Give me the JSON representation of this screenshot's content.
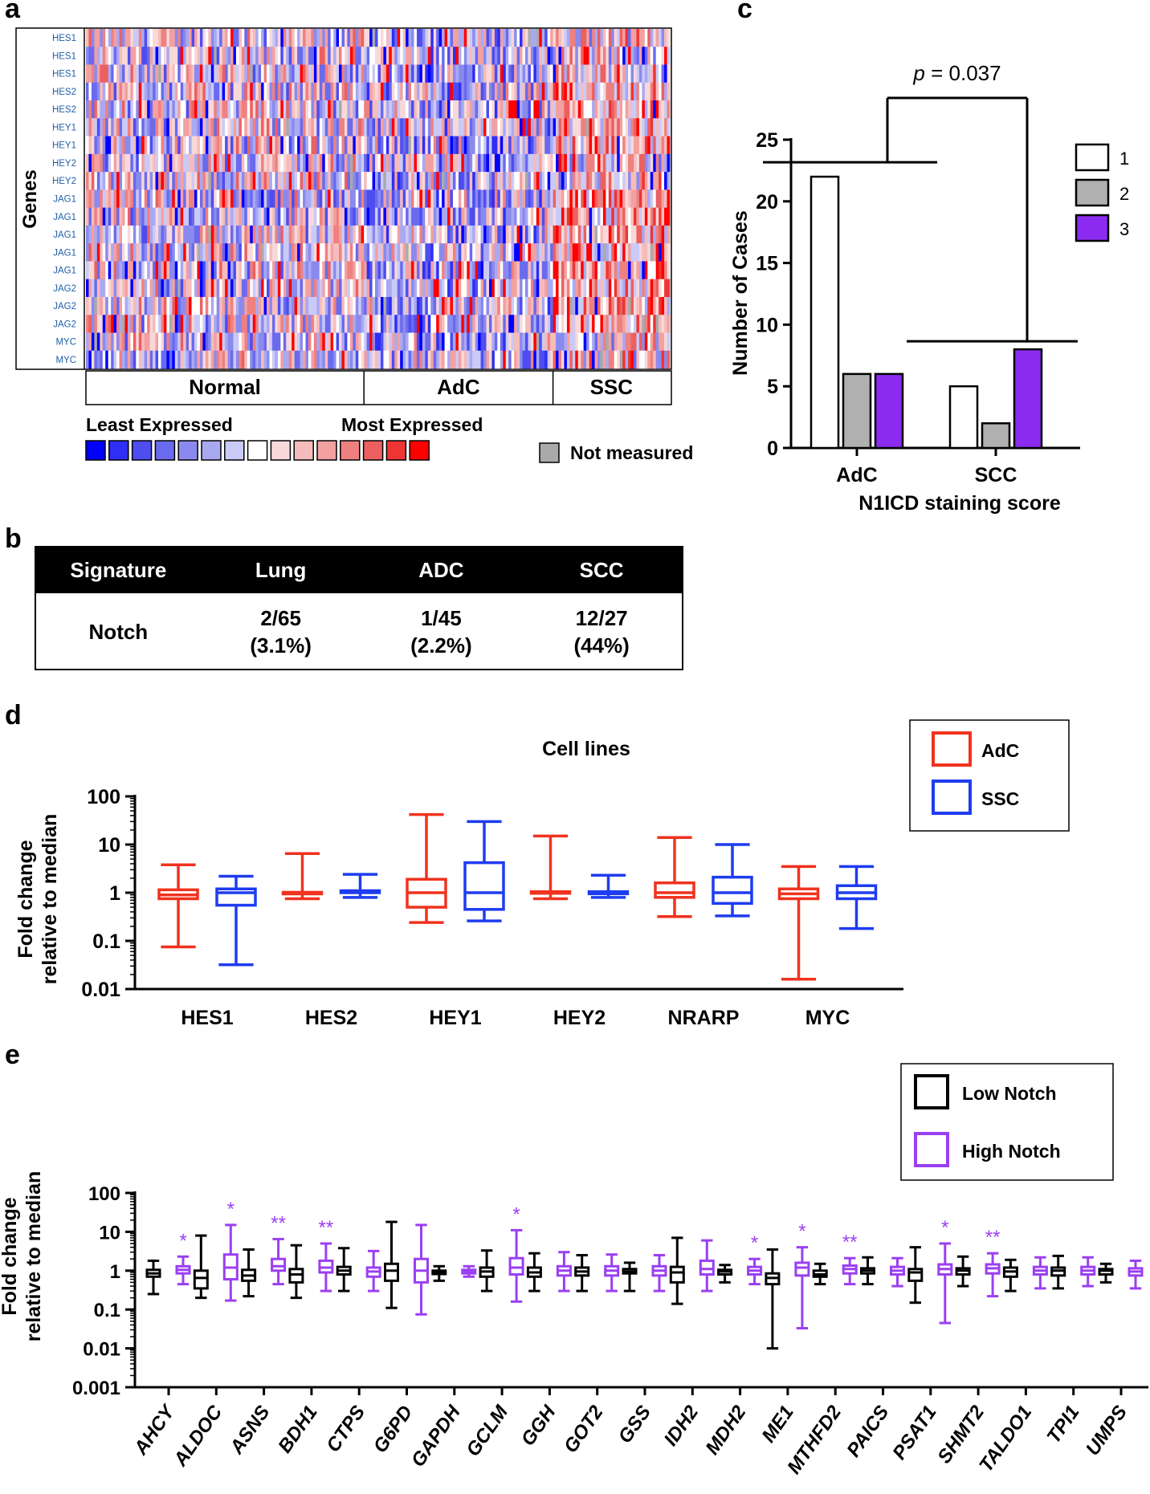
{
  "panel_labels": {
    "a": "a",
    "b": "b",
    "c": "c",
    "d": "d",
    "e": "e"
  },
  "colors": {
    "adc": "#f0321e",
    "ssc": "#1e3cf0",
    "low": "#000000",
    "high": "#9b3ff2",
    "bar1": "#ffffff",
    "bar2": "#b0b0b0",
    "bar3": "#8c2bf0",
    "na": "#aaaaaa"
  },
  "heatmap": {
    "y_title": "Genes",
    "genes": [
      "HES1",
      "HES1",
      "HES1",
      "HES2",
      "HES2",
      "HEY1",
      "HEY1",
      "HEY2",
      "HEY2",
      "JAG1",
      "JAG1",
      "JAG1",
      "JAG1",
      "JAG1",
      "JAG2",
      "JAG2",
      "JAG2",
      "MYC",
      "MYC"
    ],
    "groups": [
      {
        "label": "Normal",
        "count": 100
      },
      {
        "label": "AdC",
        "count": 68
      },
      {
        "label": "SSC",
        "count": 42
      }
    ],
    "legend_low": "Least Expressed",
    "legend_high": "Most Expressed",
    "legend_na": "Not measured",
    "scale": [
      "#0000ff",
      "#2e2ef5",
      "#4d4df0",
      "#6a6aee",
      "#8a8aee",
      "#a9a9f2",
      "#cacaf6",
      "#ffffff",
      "#f8d8d8",
      "#f6bcbc",
      "#f2a0a0",
      "#ef8080",
      "#ec6060",
      "#ef3434",
      "#ff0000"
    ]
  },
  "table": {
    "headers": [
      "Signature",
      "Lung",
      "ADC",
      "SCC"
    ],
    "row": {
      "label": "Notch",
      "lung": [
        "2/65",
        "(3.1%)"
      ],
      "adc": [
        "1/45",
        "(2.2%)"
      ],
      "scc": [
        "12/27",
        "(44%)"
      ]
    }
  },
  "chart_data": [
    {
      "panel": "c",
      "type": "bar",
      "categories": [
        "AdC",
        "SCC"
      ],
      "series": [
        {
          "name": "1",
          "values": [
            22,
            5
          ]
        },
        {
          "name": "2",
          "values": [
            6,
            2
          ]
        },
        {
          "name": "3",
          "values": [
            6,
            8
          ]
        }
      ],
      "xlabel": "N1ICD staining score",
      "ylabel": "Number of Cases",
      "ylim": [
        0,
        25
      ],
      "yticks": [
        0,
        5,
        10,
        15,
        20,
        25
      ],
      "annotation": {
        "prefix": "p",
        "text": " = 0.037"
      }
    },
    {
      "panel": "d",
      "type": "box",
      "title": "Cell lines",
      "ylabel": [
        "Fold change",
        "relative to median"
      ],
      "yscale": "log",
      "ylim": [
        0.01,
        100
      ],
      "ytick_labels": [
        "0.01",
        "0.1",
        "1",
        "10",
        "100"
      ],
      "series_names": [
        "AdC",
        "SSC"
      ],
      "categories": [
        "HES1",
        "HES2",
        "HEY1",
        "HEY2",
        "NRARP",
        "MYC"
      ],
      "boxes": [
        {
          "cat": "HES1",
          "series": "AdC",
          "min": 0.075,
          "q1": 0.75,
          "med": 0.9,
          "q3": 1.15,
          "max": 3.8
        },
        {
          "cat": "HES1",
          "series": "SSC",
          "min": 0.032,
          "q1": 0.55,
          "med": 1.0,
          "q3": 1.2,
          "max": 2.2
        },
        {
          "cat": "HES2",
          "series": "AdC",
          "min": 0.75,
          "q1": 0.98,
          "med": 1.0,
          "q3": 1.02,
          "max": 6.5
        },
        {
          "cat": "HES2",
          "series": "SSC",
          "min": 0.8,
          "q1": 1.0,
          "med": 1.05,
          "q3": 1.1,
          "max": 2.4
        },
        {
          "cat": "HEY1",
          "series": "AdC",
          "min": 0.24,
          "q1": 0.5,
          "med": 1.0,
          "q3": 1.9,
          "max": 42
        },
        {
          "cat": "HEY1",
          "series": "SSC",
          "min": 0.26,
          "q1": 0.45,
          "med": 1.0,
          "q3": 4.2,
          "max": 30
        },
        {
          "cat": "HEY2",
          "series": "AdC",
          "min": 0.75,
          "q1": 0.98,
          "med": 1.0,
          "q3": 1.05,
          "max": 15
        },
        {
          "cat": "HEY2",
          "series": "SSC",
          "min": 0.8,
          "q1": 0.95,
          "med": 1.0,
          "q3": 1.05,
          "max": 2.3
        },
        {
          "cat": "NRARP",
          "series": "AdC",
          "min": 0.32,
          "q1": 0.8,
          "med": 1.0,
          "q3": 1.6,
          "max": 14
        },
        {
          "cat": "NRARP",
          "series": "SSC",
          "min": 0.33,
          "q1": 0.6,
          "med": 1.0,
          "q3": 2.1,
          "max": 10
        },
        {
          "cat": "MYC",
          "series": "AdC",
          "min": 0.016,
          "q1": 0.75,
          "med": 0.95,
          "q3": 1.2,
          "max": 3.5
        },
        {
          "cat": "MYC",
          "series": "SSC",
          "min": 0.18,
          "q1": 0.75,
          "med": 1.0,
          "q3": 1.4,
          "max": 3.5
        }
      ]
    },
    {
      "panel": "e",
      "type": "box",
      "ylabel": [
        "Fold change",
        "relative to median"
      ],
      "yscale": "log",
      "ylim": [
        0.001,
        100
      ],
      "ytick_labels": [
        "0.001",
        "0.01",
        "0.1",
        "1",
        "10",
        "100"
      ],
      "series_names": [
        "Low Notch",
        "High Notch"
      ],
      "categories": [
        "AHCY",
        "ALDOC",
        "ASNS",
        "BDH1",
        "CTPS",
        "G6PD",
        "GAPDH",
        "GCLM",
        "GGH",
        "GOT2",
        "GSS",
        "IDH2",
        "MDH2",
        "ME1",
        "MTHFD2",
        "PAICS",
        "PSAT1",
        "SHMT2",
        "TALDO1",
        "TPI1",
        "UMPS"
      ],
      "significance": [
        "*",
        "*",
        "**",
        "**",
        "",
        "",
        "",
        "*",
        "",
        "",
        "",
        "",
        "*",
        "*",
        "**",
        "",
        "*",
        "**",
        "",
        "",
        ""
      ],
      "boxes_low": [
        {
          "min": 0.25,
          "q1": 0.7,
          "med": 0.85,
          "q3": 1.05,
          "max": 1.8
        },
        {
          "min": 0.2,
          "q1": 0.35,
          "med": 0.65,
          "q3": 1.0,
          "max": 8
        },
        {
          "min": 0.22,
          "q1": 0.55,
          "med": 0.75,
          "q3": 1.05,
          "max": 3.5
        },
        {
          "min": 0.2,
          "q1": 0.5,
          "med": 0.8,
          "q3": 1.1,
          "max": 4.5
        },
        {
          "min": 0.3,
          "q1": 0.8,
          "med": 1.0,
          "q3": 1.25,
          "max": 3.8
        },
        {
          "min": 0.11,
          "q1": 0.55,
          "med": 1.0,
          "q3": 1.5,
          "max": 18
        },
        {
          "min": 0.55,
          "q1": 0.82,
          "med": 0.9,
          "q3": 1.0,
          "max": 1.3
        },
        {
          "min": 0.3,
          "q1": 0.7,
          "med": 0.95,
          "q3": 1.2,
          "max": 3.3
        },
        {
          "min": 0.3,
          "q1": 0.7,
          "med": 0.9,
          "q3": 1.2,
          "max": 2.8
        },
        {
          "min": 0.3,
          "q1": 0.75,
          "med": 0.95,
          "q3": 1.2,
          "max": 2.5
        },
        {
          "min": 0.3,
          "q1": 0.85,
          "med": 0.95,
          "q3": 1.1,
          "max": 1.6
        },
        {
          "min": 0.14,
          "q1": 0.5,
          "med": 0.9,
          "q3": 1.25,
          "max": 7
        },
        {
          "min": 0.5,
          "q1": 0.8,
          "med": 0.95,
          "q3": 1.05,
          "max": 1.4
        },
        {
          "min": 0.01,
          "q1": 0.45,
          "med": 0.65,
          "q3": 0.85,
          "max": 3.5
        },
        {
          "min": 0.45,
          "q1": 0.7,
          "med": 0.8,
          "q3": 1.0,
          "max": 1.5
        },
        {
          "min": 0.45,
          "q1": 0.85,
          "med": 1.0,
          "q3": 1.15,
          "max": 2.2
        },
        {
          "min": 0.15,
          "q1": 0.55,
          "med": 0.9,
          "q3": 1.1,
          "max": 4
        },
        {
          "min": 0.4,
          "q1": 0.8,
          "med": 1.0,
          "q3": 1.15,
          "max": 2.3
        },
        {
          "min": 0.3,
          "q1": 0.7,
          "med": 0.95,
          "q3": 1.2,
          "max": 1.9
        },
        {
          "min": 0.35,
          "q1": 0.75,
          "med": 1.0,
          "q3": 1.2,
          "max": 2.4
        },
        {
          "min": 0.5,
          "q1": 0.8,
          "med": 1.0,
          "q3": 1.1,
          "max": 1.5
        }
      ],
      "boxes_high": [
        {
          "min": 0.45,
          "q1": 0.85,
          "med": 1.05,
          "q3": 1.3,
          "max": 2.3
        },
        {
          "min": 0.17,
          "q1": 0.6,
          "med": 1.2,
          "q3": 2.6,
          "max": 15
        },
        {
          "min": 0.45,
          "q1": 1.0,
          "med": 1.3,
          "q3": 2.0,
          "max": 6.5
        },
        {
          "min": 0.3,
          "q1": 0.9,
          "med": 1.2,
          "q3": 1.8,
          "max": 5
        },
        {
          "min": 0.3,
          "q1": 0.7,
          "med": 0.95,
          "q3": 1.2,
          "max": 3.2
        },
        {
          "min": 0.075,
          "q1": 0.5,
          "med": 1.0,
          "q3": 2.0,
          "max": 15
        },
        {
          "min": 0.7,
          "q1": 0.85,
          "med": 0.95,
          "q3": 1.05,
          "max": 1.3
        },
        {
          "min": 0.16,
          "q1": 0.8,
          "med": 1.2,
          "q3": 2.1,
          "max": 11
        },
        {
          "min": 0.3,
          "q1": 0.75,
          "med": 1.0,
          "q3": 1.3,
          "max": 3
        },
        {
          "min": 0.3,
          "q1": 0.75,
          "med": 1.0,
          "q3": 1.3,
          "max": 2.6
        },
        {
          "min": 0.3,
          "q1": 0.75,
          "med": 1.0,
          "q3": 1.3,
          "max": 2.5
        },
        {
          "min": 0.3,
          "q1": 0.8,
          "med": 1.1,
          "q3": 1.8,
          "max": 6
        },
        {
          "min": 0.45,
          "q1": 0.8,
          "med": 1.0,
          "q3": 1.25,
          "max": 2.0
        },
        {
          "min": 0.033,
          "q1": 0.75,
          "med": 1.2,
          "q3": 1.6,
          "max": 4
        },
        {
          "min": 0.45,
          "q1": 0.85,
          "med": 1.1,
          "q3": 1.35,
          "max": 2.1
        },
        {
          "min": 0.4,
          "q1": 0.8,
          "med": 1.0,
          "q3": 1.25,
          "max": 2.1
        },
        {
          "min": 0.045,
          "q1": 0.8,
          "med": 1.1,
          "q3": 1.45,
          "max": 5
        },
        {
          "min": 0.22,
          "q1": 0.85,
          "med": 1.15,
          "q3": 1.45,
          "max": 2.8
        },
        {
          "min": 0.35,
          "q1": 0.8,
          "med": 1.0,
          "q3": 1.25,
          "max": 2.2
        },
        {
          "min": 0.4,
          "q1": 0.8,
          "med": 1.0,
          "q3": 1.25,
          "max": 2.2
        },
        {
          "min": 0.35,
          "q1": 0.75,
          "med": 0.95,
          "q3": 1.15,
          "max": 1.8
        }
      ]
    }
  ]
}
